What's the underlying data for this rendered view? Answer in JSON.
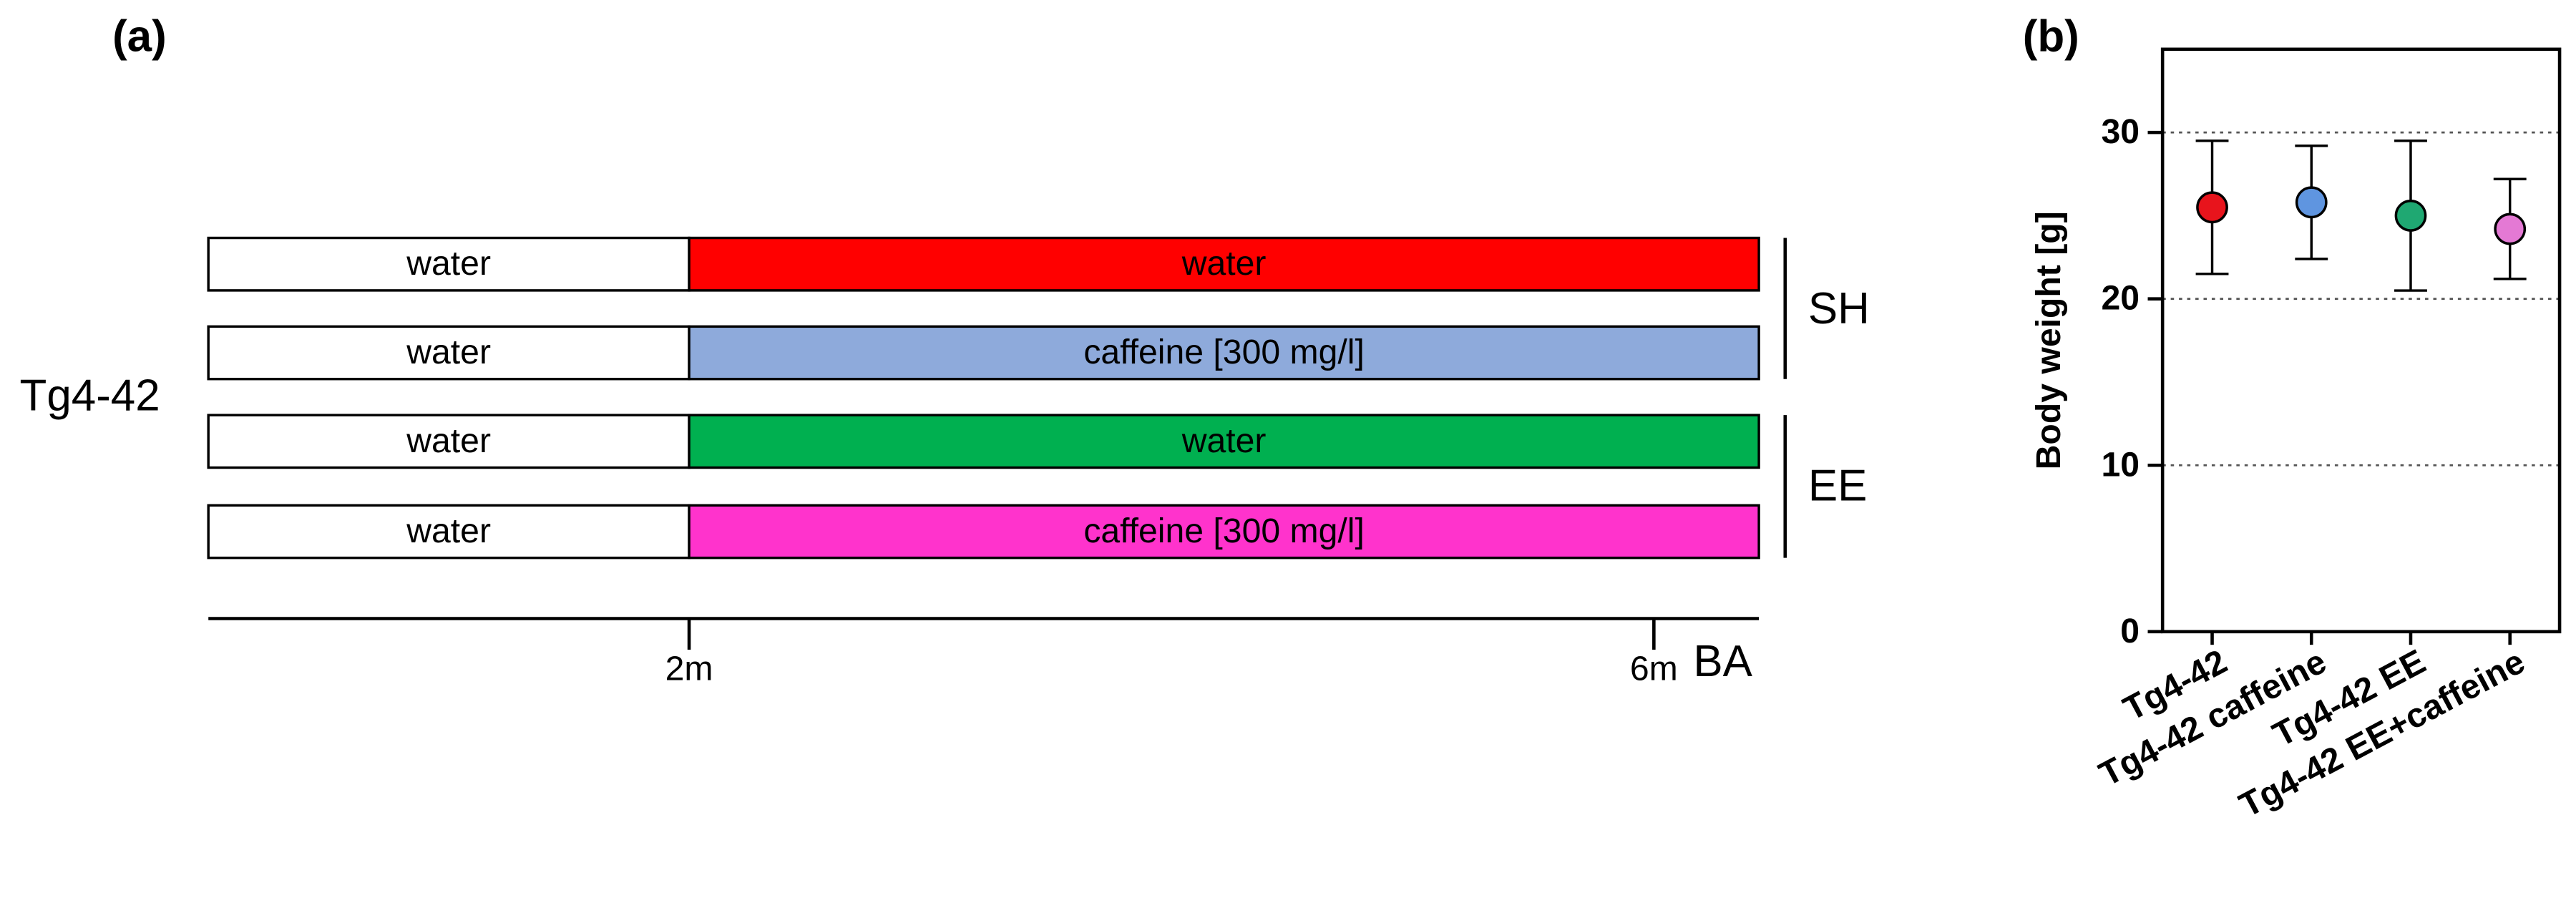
{
  "panel_a": {
    "label": "(a)",
    "group": "Tg4-42",
    "rows": [
      {
        "before": "water",
        "after": "water",
        "color": "#ff0000"
      },
      {
        "before": "water",
        "after": "caffeine [300 mg/l]",
        "color": "#8eaadb"
      },
      {
        "before": "water",
        "after": "water",
        "color": "#00b050"
      },
      {
        "before": "water",
        "after": "caffeine [300 mg/l]",
        "color": "#ff33cc"
      }
    ],
    "brackets": [
      "SH",
      "EE"
    ],
    "timeline": {
      "ticks": [
        "2m",
        "6m"
      ],
      "end": "BA"
    }
  },
  "chart_data": {
    "type": "dot",
    "panel_label": "(b)",
    "y_label": "Body weight [g]",
    "categories": [
      "Tg4-42",
      "Tg4-42 caffeine",
      "Tg4-42 EE",
      "Tg4-42 EE+caffeine"
    ],
    "values": [
      25.5,
      25.8,
      25.0,
      24.2
    ],
    "errors": [
      4.0,
      3.4,
      4.5,
      3.0
    ],
    "colors": [
      "#e8141c",
      "#5f95e0",
      "#1fa872",
      "#e479d4"
    ],
    "ylim": [
      0,
      35
    ],
    "yticks": [
      0,
      10,
      20,
      30
    ],
    "grid": true
  }
}
